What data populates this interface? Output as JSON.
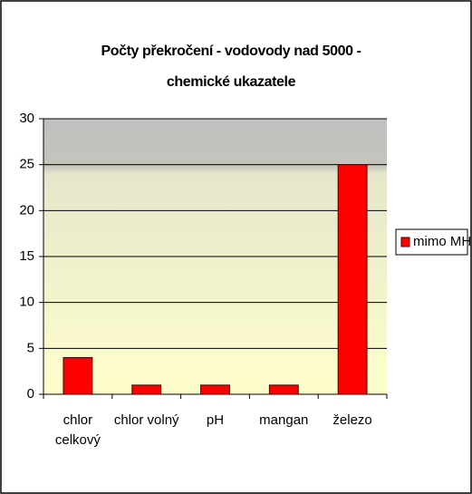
{
  "chart_data": {
    "type": "bar",
    "title": "Počty překročení - vodovody nad 5000 - chemické ukazatele",
    "categories": [
      "chlor celkový",
      "chlor volný",
      "pH",
      "mangan",
      "železo"
    ],
    "series": [
      {
        "name": "mimo MH",
        "color": "#ff0000",
        "values": [
          4,
          1,
          1,
          1,
          25
        ]
      }
    ],
    "ylim": [
      0,
      30
    ],
    "yticks": [
      0,
      5,
      10,
      15,
      20,
      25,
      30
    ],
    "grid": true,
    "legend": "right"
  }
}
